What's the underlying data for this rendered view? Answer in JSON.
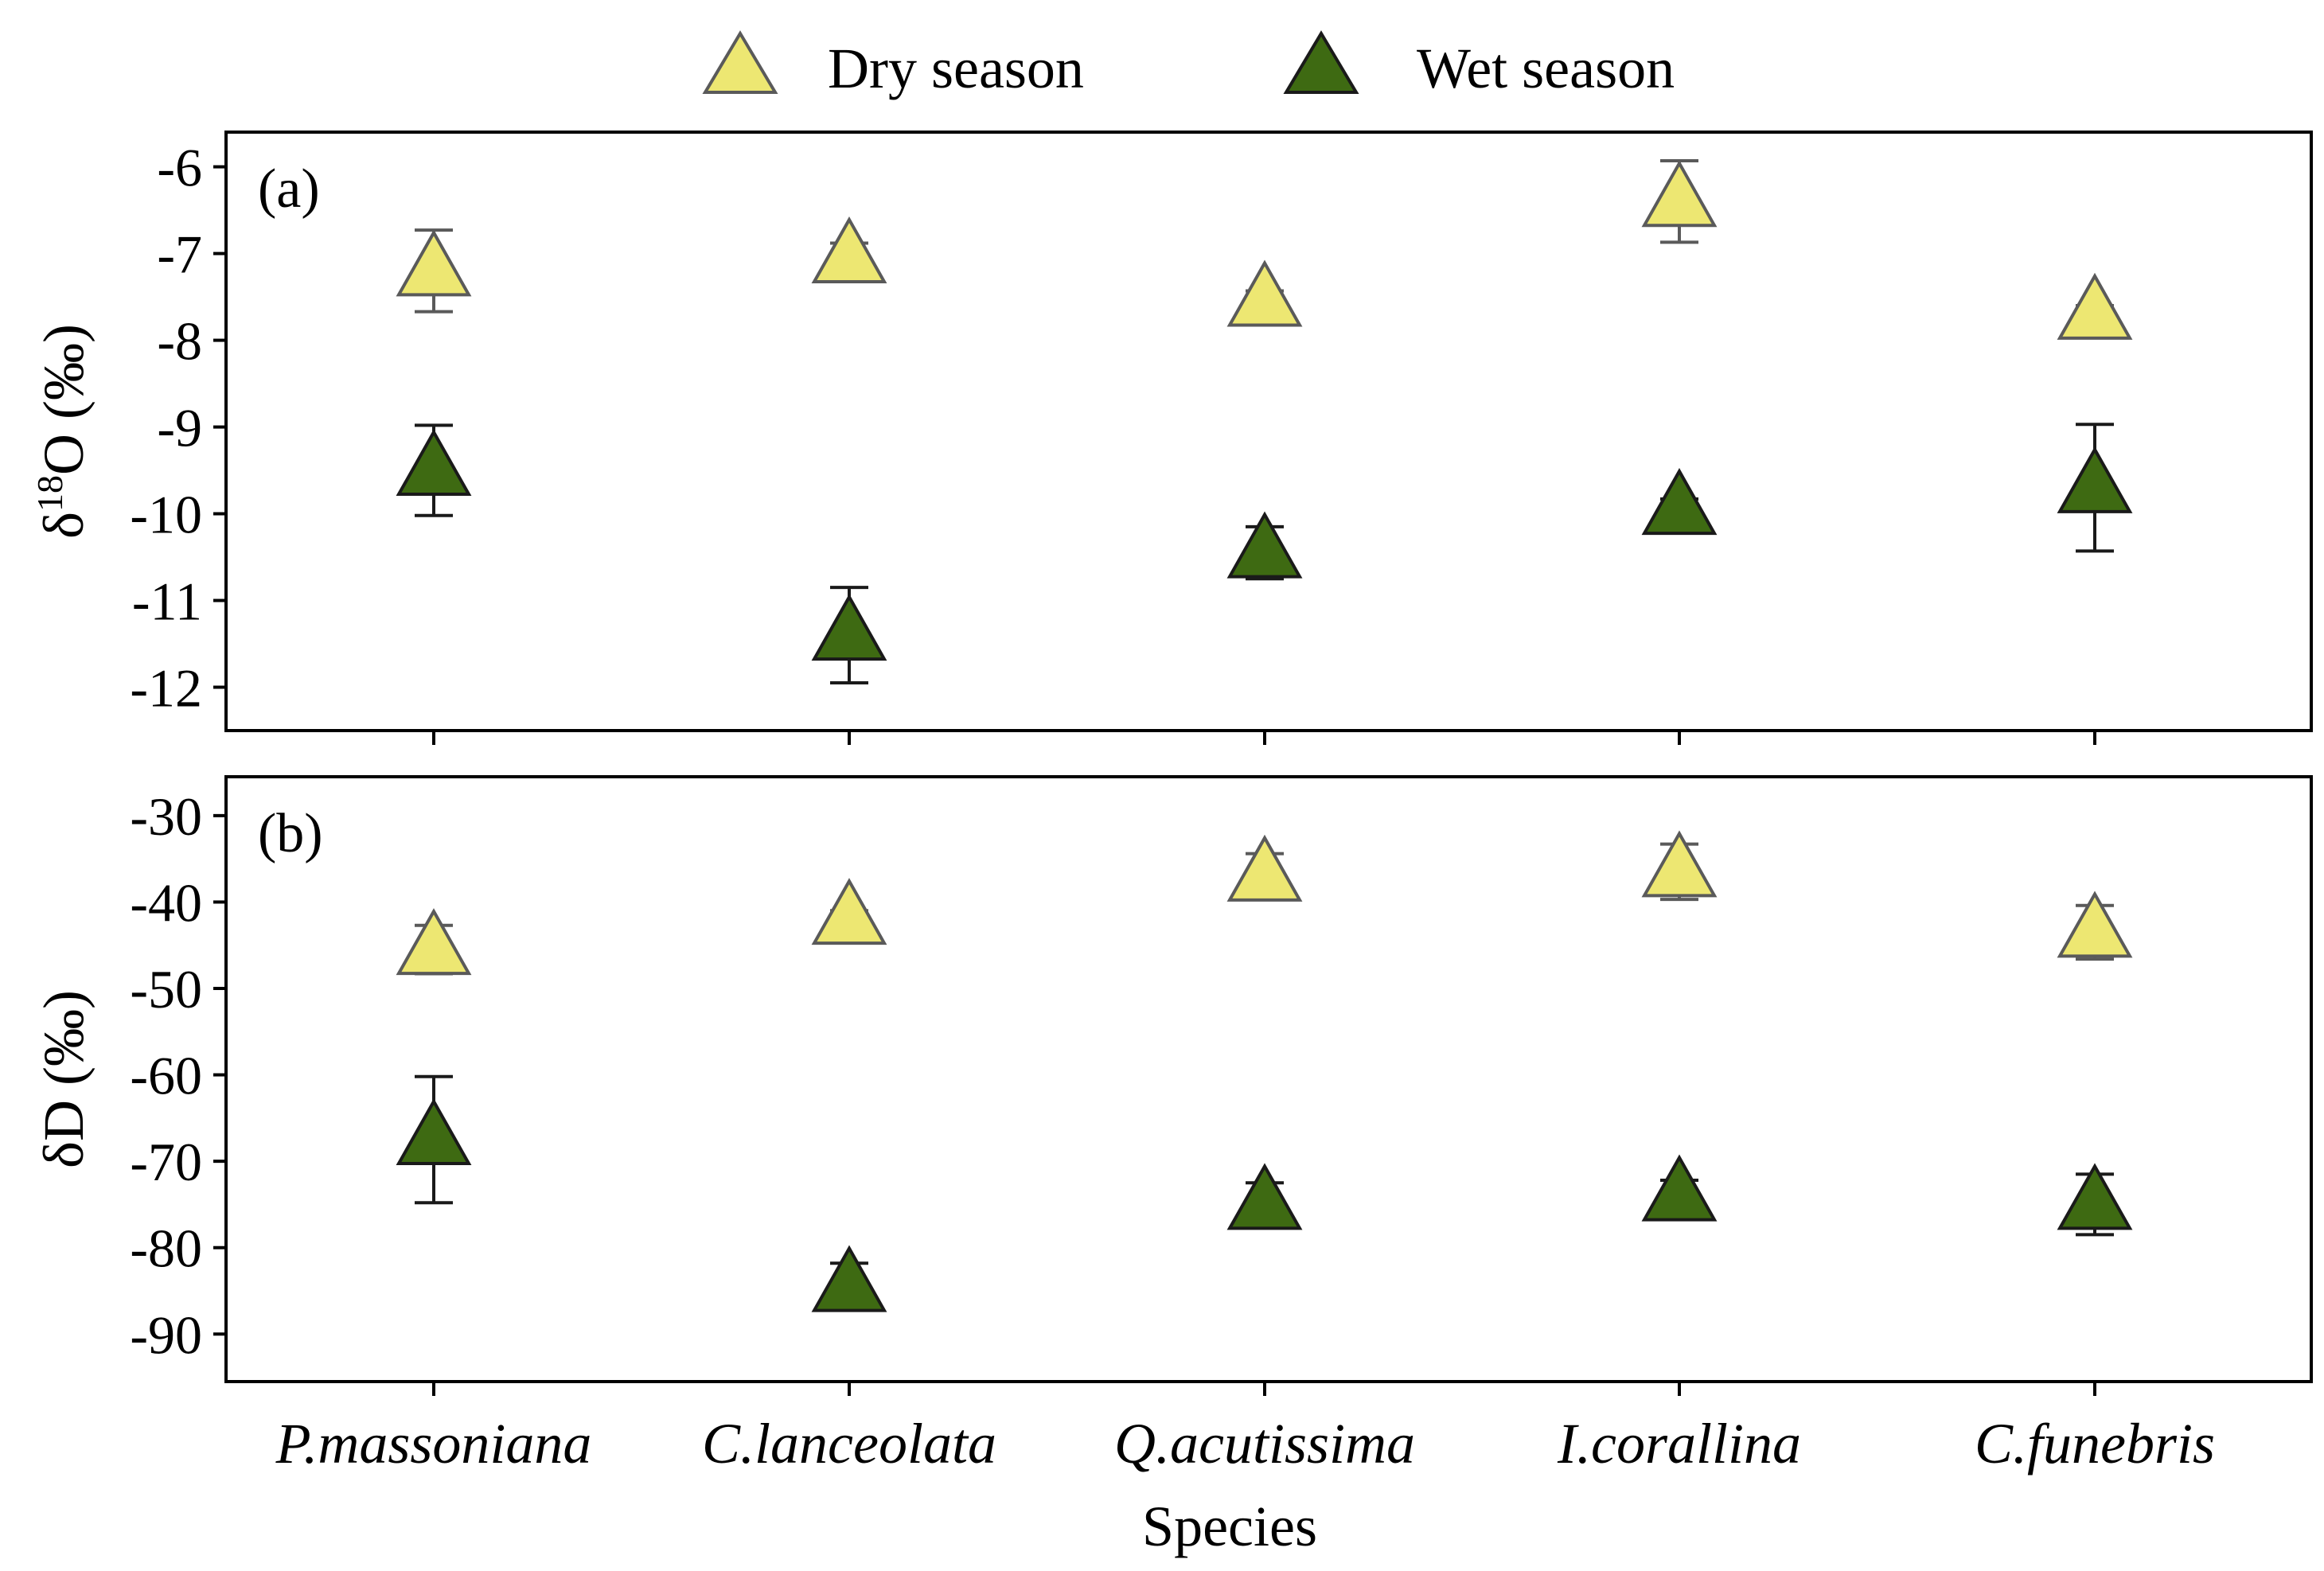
{
  "legend": {
    "dry_label": "Dry season",
    "wet_label": "Wet season"
  },
  "colors": {
    "dry_fill": "#EDE772",
    "dry_stroke": "#5A5A5A",
    "wet_fill": "#3E6A12",
    "wet_stroke": "#1A1A1A"
  },
  "chart_data": [
    {
      "type": "scatter",
      "panel_label": "(a)",
      "ylabel": {
        "prefix": "δ",
        "sup": "18",
        "rest": "O (‰)"
      },
      "xlabel": "",
      "categories": [
        "P.massoniana",
        "C.lanceolata",
        "Q.acutissima",
        "I.corallina",
        "C.funebris"
      ],
      "ylim": [
        -12.5,
        -5.6
      ],
      "yticks": [
        -6,
        -7,
        -8,
        -9,
        -10,
        -11,
        -12
      ],
      "series": [
        {
          "name": "Dry season",
          "values": [
            -7.2,
            -7.05,
            -7.55,
            -6.4,
            -7.7
          ],
          "errors": [
            0.47,
            0.17,
            0.12,
            0.47,
            0.1
          ]
        },
        {
          "name": "Wet season",
          "values": [
            -9.5,
            -11.4,
            -10.45,
            -9.95,
            -9.7
          ],
          "errors": [
            0.52,
            0.55,
            0.3,
            0.12,
            0.73
          ]
        }
      ]
    },
    {
      "type": "scatter",
      "panel_label": "(b)",
      "ylabel": {
        "prefix": "δ",
        "sup": "",
        "rest": "D (‰)"
      },
      "xlabel": "Species",
      "categories": [
        "P.massoniana",
        "C.lanceolata",
        "Q.acutissima",
        "I.corallina",
        "C.funebris"
      ],
      "ylim": [
        -95.5,
        -25.5
      ],
      "yticks": [
        -30,
        -40,
        -50,
        -60,
        -70,
        -80,
        -90
      ],
      "series": [
        {
          "name": "Dry season",
          "values": [
            -45.5,
            -42.0,
            -37.0,
            -36.5,
            -43.5
          ],
          "errors": [
            2.8,
            1.0,
            2.6,
            3.2,
            3.1
          ]
        },
        {
          "name": "Wet season",
          "values": [
            -67.5,
            -84.5,
            -75.0,
            -74.0,
            -75.0
          ],
          "errors": [
            7.3,
            2.7,
            2.5,
            1.8,
            3.5
          ]
        }
      ]
    }
  ]
}
